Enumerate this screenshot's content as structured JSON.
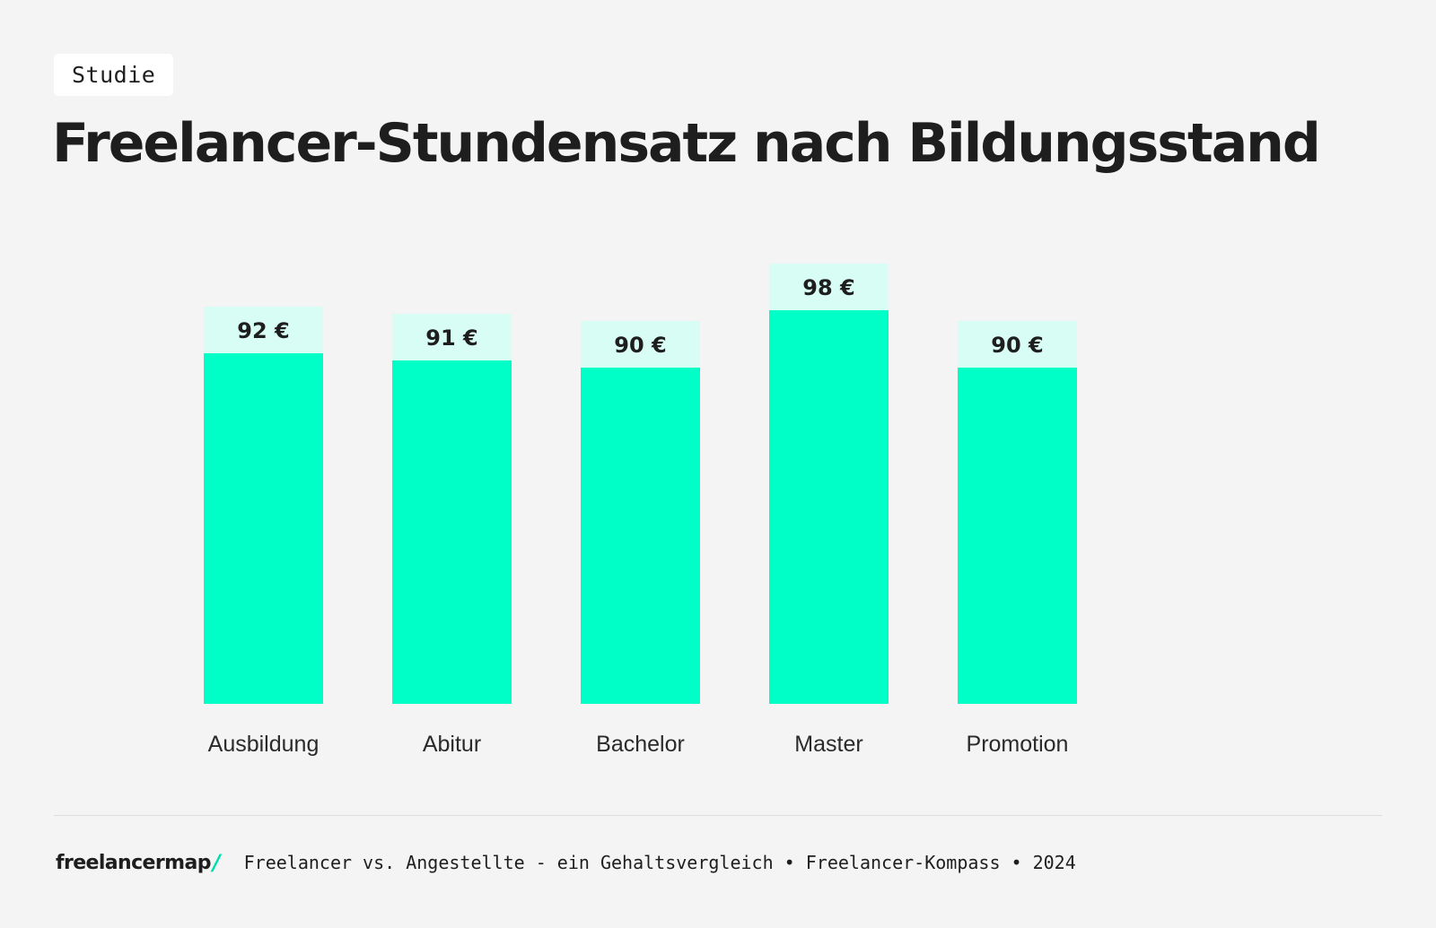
{
  "header": {
    "tag": "Studie",
    "title": "Freelancer-Stundensatz nach Bildungsstand"
  },
  "colors": {
    "bar": "#00ffc6",
    "label_bg": "#d8fdf4",
    "background": "#f4f4f4",
    "text": "#1e1e1e",
    "accent": "#00e0ae"
  },
  "chart_data": {
    "type": "bar",
    "title": "Freelancer-Stundensatz nach Bildungsstand",
    "categories": [
      "Ausbildung",
      "Abitur",
      "Bachelor",
      "Master",
      "Promotion"
    ],
    "values": [
      92,
      91,
      90,
      98,
      90
    ],
    "value_labels": [
      "92 €",
      "91 €",
      "90 €",
      "98 €",
      "90 €"
    ],
    "unit": "€",
    "xlabel": "",
    "ylabel": "",
    "grid": false
  },
  "footer": {
    "brand": "freelancermap",
    "brand_slash": "/",
    "source": "Freelancer vs. Angestellte - ein Gehaltsvergleich • Freelancer-Kompass • 2024"
  }
}
